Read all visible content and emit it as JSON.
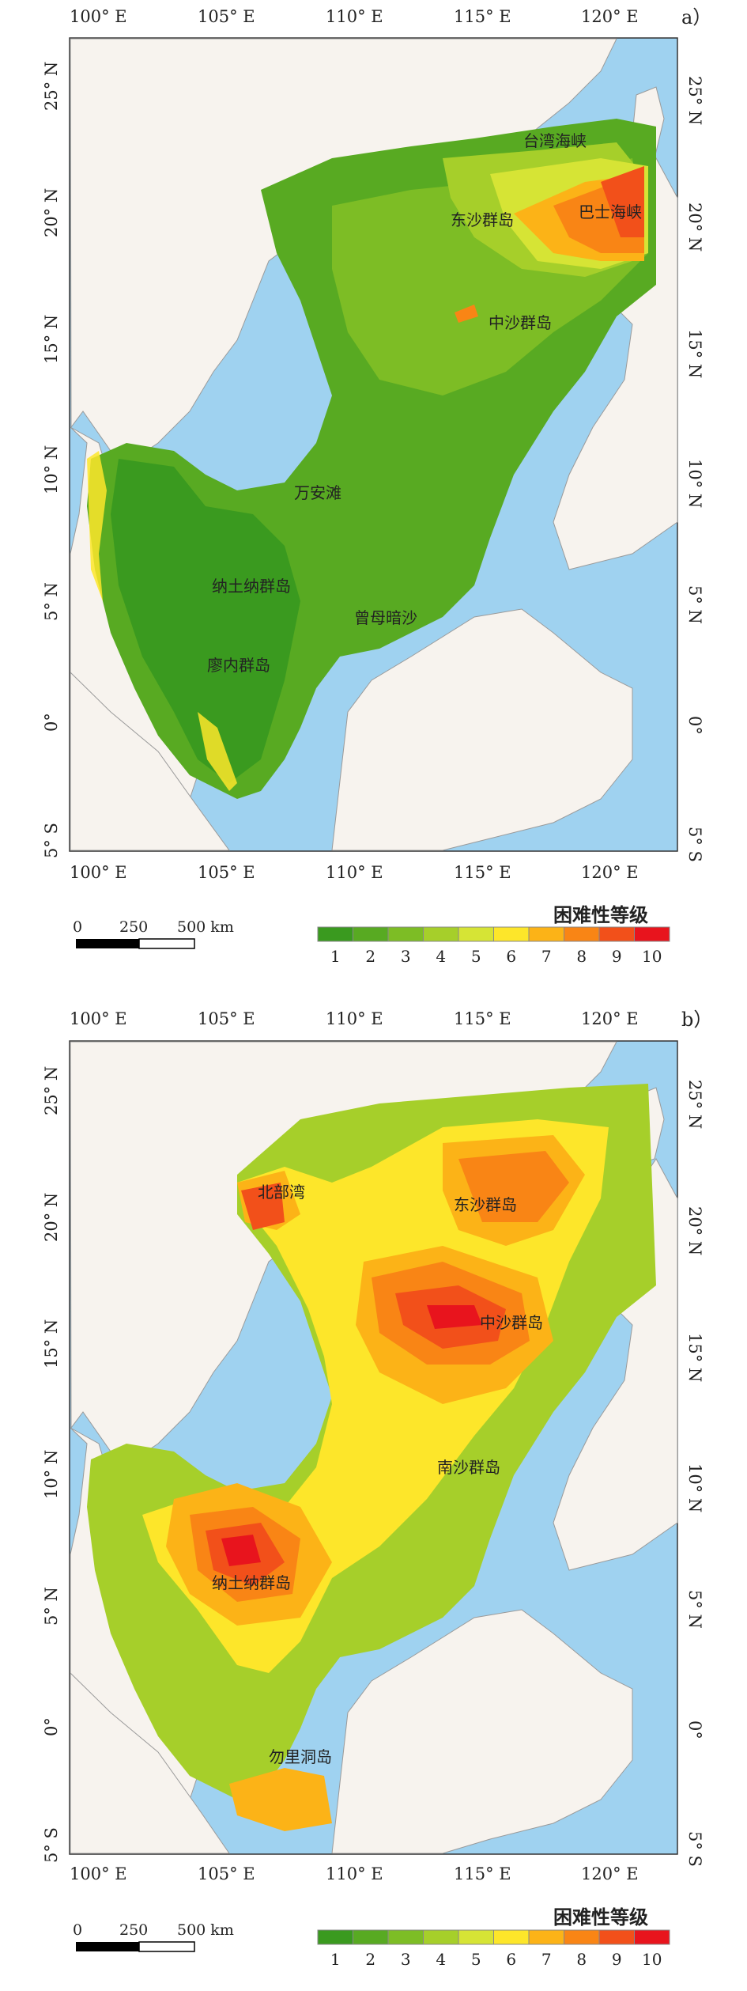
{
  "panels": [
    {
      "id": "a",
      "panel_label": "a）",
      "lon_labels": [
        "100° E",
        "105° E",
        "110° E",
        "115° E",
        "120° E"
      ],
      "lat_labels": [
        "25° N",
        "20° N",
        "15° N",
        "10° N",
        "5° N",
        "0°",
        "5° S"
      ],
      "place_labels": [
        "台湾海峡",
        "东沙群岛",
        "巴士海峡",
        "中沙群岛",
        "万安滩",
        "纳土纳群岛",
        "曾母暗沙",
        "廖内群岛"
      ],
      "scale_bar": {
        "ticks": [
          "0",
          "250",
          "500 km"
        ]
      },
      "legend": {
        "title": "困难性等级",
        "classes": [
          "1",
          "2",
          "3",
          "4",
          "5",
          "6",
          "7",
          "8",
          "9",
          "10"
        ]
      }
    },
    {
      "id": "b",
      "panel_label": "b）",
      "lon_labels": [
        "100° E",
        "105° E",
        "110° E",
        "115° E",
        "120° E"
      ],
      "lat_labels": [
        "25° N",
        "20° N",
        "15° N",
        "10° N",
        "5° N",
        "0°",
        "5° S"
      ],
      "place_labels": [
        "北部湾",
        "东沙群岛",
        "中沙群岛",
        "南沙群岛",
        "纳土纳群岛",
        "勿里洞岛"
      ],
      "scale_bar": {
        "ticks": [
          "0",
          "250",
          "500 km"
        ]
      },
      "legend": {
        "title": "困难性等级",
        "classes": [
          "1",
          "2",
          "3",
          "4",
          "5",
          "6",
          "7",
          "8",
          "9",
          "10"
        ]
      }
    }
  ],
  "colors": {
    "ocean": "#9fd2f0",
    "land": "#f7f3ee",
    "border": "#9a9a9a",
    "class_colors": [
      "#3a9a1f",
      "#58aa22",
      "#7dbd25",
      "#a6cf2a",
      "#d6e435",
      "#fde62a",
      "#fcb317",
      "#f98515",
      "#f2501a",
      "#e8141d"
    ]
  }
}
